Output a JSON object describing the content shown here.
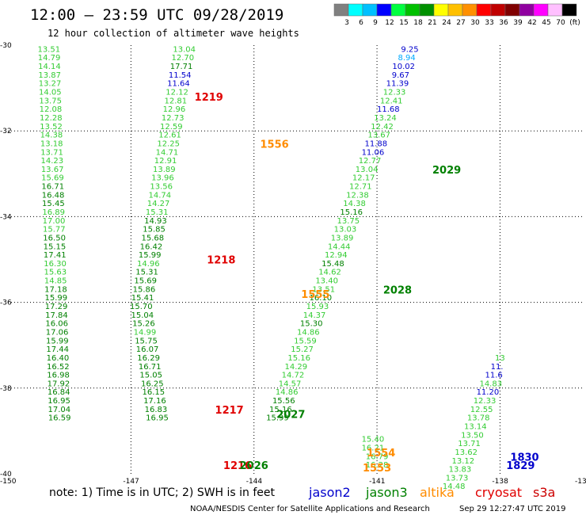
{
  "header": {
    "title": "12:00 – 23:59 UTC 09/28/2019",
    "subtitle": "12 hour collection of altimeter wave heights"
  },
  "legend": {
    "colors": [
      "#808080",
      "#00ffff",
      "#00c0ff",
      "#0000ff",
      "#00ff40",
      "#00c000",
      "#009000",
      "#ffff00",
      "#ffc000",
      "#ff9000",
      "#ff0000",
      "#c00000",
      "#800000",
      "#9000a0",
      "#ff00ff",
      "#ffc0ff",
      "#000000"
    ],
    "labels": [
      "3",
      "6",
      "9",
      "12",
      "15",
      "18",
      "21",
      "24",
      "27",
      "30",
      "33",
      "36",
      "39",
      "42",
      "45",
      "70",
      "(ft)"
    ]
  },
  "axes": {
    "lat_ticks": [
      "-30",
      "-32",
      "-34",
      "-36",
      "-38",
      "-40"
    ],
    "lon_ticks": [
      "-150",
      "-147",
      "-144",
      "-141",
      "-138",
      "-13"
    ]
  },
  "satellite_colors": {
    "jason2": "#0000cc",
    "jason3": "#008000",
    "altika": "#ff8c00",
    "cryosat": "#e00000",
    "s3a": "#cc0000",
    "wave_green": "#33cc33"
  },
  "tracks": [
    {
      "lon": -149.0,
      "lat_start": -30.1,
      "lat_step": 0.2,
      "values": [
        "13.51",
        "14.79",
        "14.14",
        "13.87",
        "13.27",
        "14.05",
        "13.75",
        "12.08",
        "12.28",
        "13.52",
        "14.38",
        "13.18",
        "13.71",
        "14.23",
        "13.67",
        "15.69",
        "16.71",
        "16.48",
        "15.45",
        "16.89",
        "17.00",
        "15.77",
        "16.50",
        "15.15",
        "17.41",
        "16.30",
        "15.63",
        "14.85",
        "17.18",
        "15.99",
        "17.29",
        "17.84",
        "16.06",
        "17.06",
        "15.99",
        "17.44",
        "16.40",
        "16.52",
        "16.98",
        "17.92",
        "16.84",
        "16.95",
        "17.04",
        "16.59"
      ],
      "color_codes": "ggggggggggggggggGGGgggGGGgggGGGGGGGGGGGGGGGG"
    },
    {
      "lon": -145.7,
      "lat_start": -30.1,
      "lat_step": 0.2,
      "values": [
        "13.04",
        "12.70",
        "17.71",
        "11.54",
        "11.64",
        "12.12",
        "12.81",
        "12.96",
        "12.73",
        "12.59",
        "12.61",
        "12.25",
        "14.71",
        "12.91",
        "13.89",
        "13.96",
        "13.56",
        "14.74",
        "14.27",
        "15.31",
        "14.93",
        "15.85",
        "15.68",
        "16.42",
        "15.99",
        "14.96",
        "15.31",
        "15.69",
        "15.86",
        "15.41",
        "15.70",
        "15.04",
        "15.26",
        "14.99",
        "15.75",
        "16.07",
        "16.29",
        "16.71",
        "15.05",
        "16.25",
        "16.15",
        "17.16",
        "16.83",
        "16.95"
      ],
      "color_codes": "ggGbbgggggggggggggggGGGGGgGGGGGGGgGGGGGGGGGG"
    },
    {
      "lon": -140.2,
      "lat_start": -30.1,
      "lat_step": 0.2,
      "values": [
        "9.25",
        "8.94",
        "10.02",
        "9.67",
        "11.39",
        "12.33",
        "12.41",
        "11.68",
        "13.24",
        "12.42",
        "13.67",
        "11.88",
        "11.06",
        "12.77",
        "13.04",
        "12.17",
        "12.71",
        "12.38",
        "14.38",
        "15.16",
        "13.75",
        "13.03",
        "13.89",
        "14.44",
        "12.94",
        "15.48",
        "14.62",
        "13.40",
        "13.51",
        "16.10",
        "15.93",
        "14.37",
        "15.30",
        "14.86",
        "15.59",
        "15.27",
        "15.16",
        "14.29",
        "14.72",
        "14.57",
        "14.86",
        "15.56",
        "15.16",
        "15.99"
      ],
      "color_codes": "bcbbbggbgggbbggggggGgggggGgggGggGggggggggGGG"
    },
    {
      "lon": -138.0,
      "lat_start": -37.3,
      "lat_step": 0.2,
      "values": [
        "13",
        "11.",
        "11.6",
        "14.83",
        "11.20",
        "12.33",
        "12.55",
        "13.78",
        "13.14",
        "13.50",
        "13.71",
        "13.62",
        "13.12",
        "13.83",
        "13.73",
        "14.48"
      ],
      "color_codes": "gbbgbggggggggggg"
    }
  ],
  "extra_values": [
    {
      "text": "15.40",
      "lon": -141.1,
      "lat": -39.2
    },
    {
      "text": "16.21",
      "lon": -141.1,
      "lat": -39.4
    },
    {
      "text": "16.79",
      "lon": -141.0,
      "lat": -39.6
    },
    {
      "text": "16.28",
      "lon": -141.0,
      "lat": -39.8
    }
  ],
  "pass_times": [
    {
      "label": "1219",
      "lon": -145.1,
      "lat": -31.2,
      "sat": "cryosat"
    },
    {
      "label": "1218",
      "lon": -144.8,
      "lat": -35.0,
      "sat": "cryosat"
    },
    {
      "label": "1217",
      "lon": -144.6,
      "lat": -38.5,
      "sat": "cryosat"
    },
    {
      "label": "1216",
      "lon": -144.4,
      "lat": -39.8,
      "sat": "cryosat"
    },
    {
      "label": "1556",
      "lon": -143.5,
      "lat": -32.3,
      "sat": "altika"
    },
    {
      "label": "1555",
      "lon": -142.5,
      "lat": -35.8,
      "sat": "altika"
    },
    {
      "label": "1554",
      "lon": -140.9,
      "lat": -39.5,
      "sat": "altika"
    },
    {
      "label": "1553",
      "lon": -141.0,
      "lat": -39.85,
      "sat": "altika"
    },
    {
      "label": "2029",
      "lon": -139.3,
      "lat": -32.9,
      "sat": "jason3"
    },
    {
      "label": "2028",
      "lon": -140.5,
      "lat": -35.7,
      "sat": "jason3"
    },
    {
      "label": "2027",
      "lon": -143.1,
      "lat": -38.6,
      "sat": "jason3"
    },
    {
      "label": "2026",
      "lon": -144.0,
      "lat": -39.8,
      "sat": "jason3"
    },
    {
      "label": "1830",
      "lon": -137.4,
      "lat": -39.6,
      "sat": "jason2"
    },
    {
      "label": "1829",
      "lon": -137.5,
      "lat": -39.8,
      "sat": "jason2"
    }
  ],
  "footer": {
    "note": "note: 1) Time is in UTC; 2) SWH is in feet",
    "satellites": [
      "jason2",
      "jason3",
      "altika",
      "cryosat",
      "s3a"
    ],
    "credit": "NOAA/NESDIS Center for Satellite Applications and Research",
    "timestamp": "Sep 29 12:27:47 UTC 2019"
  }
}
